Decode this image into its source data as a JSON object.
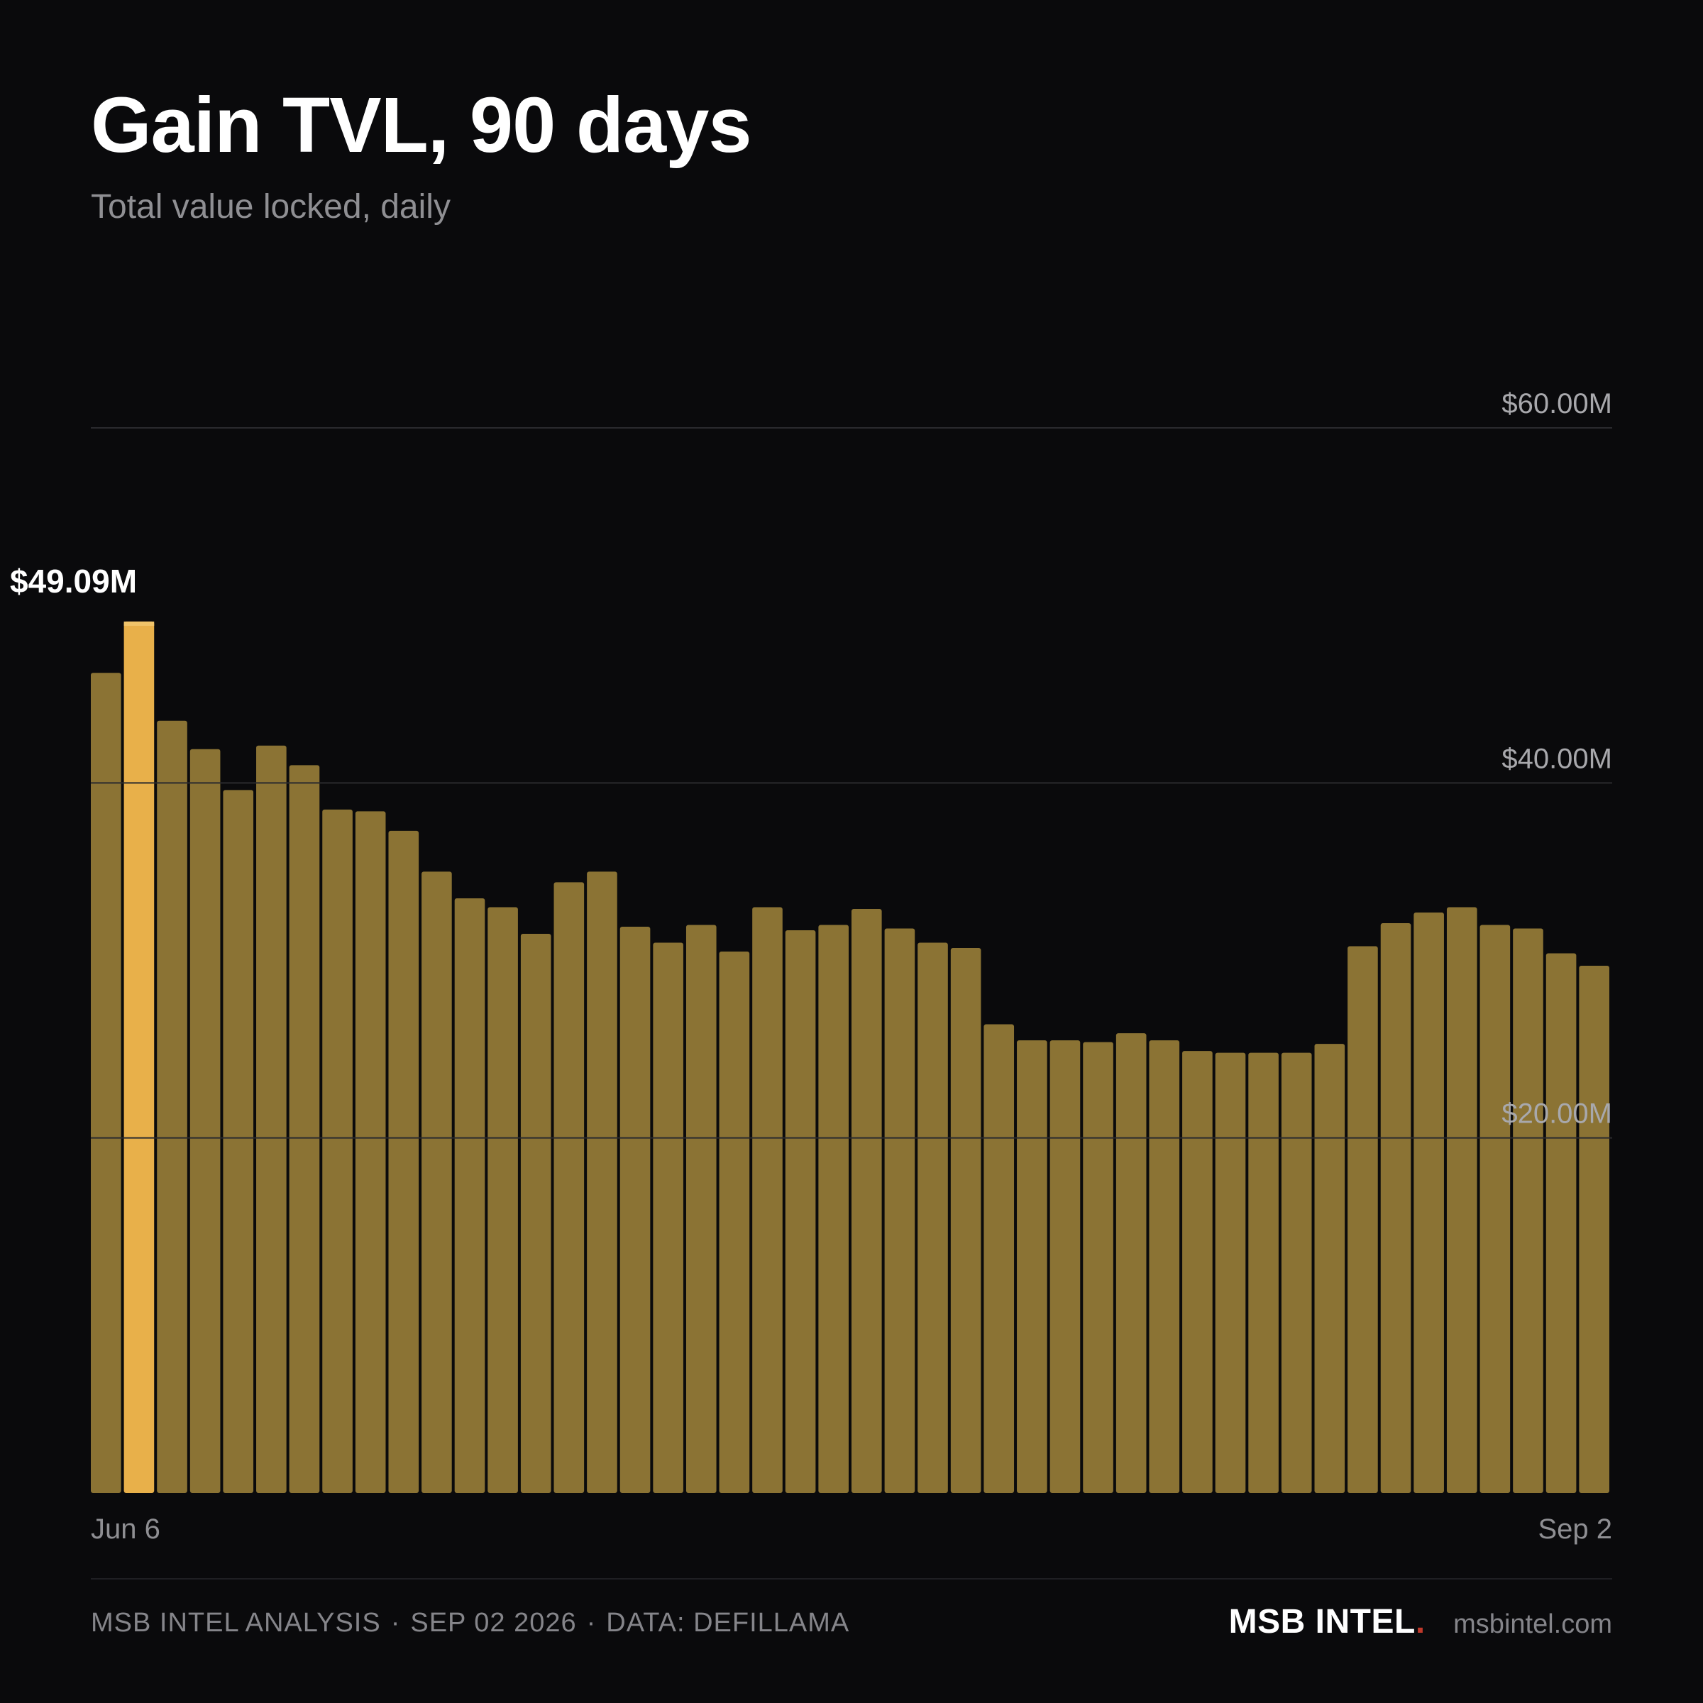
{
  "header": {
    "title": "Gain TVL, 90 days",
    "subtitle": "Total value locked, daily"
  },
  "chart_data": {
    "type": "bar",
    "title": "Gain TVL, 90 days",
    "subtitle": "Total value locked, daily",
    "xlabel": "",
    "ylabel": "",
    "x_start_label": "Jun 6",
    "x_end_label": "Sep 2",
    "ylim": [
      0,
      60
    ],
    "yticks": [
      {
        "value": 20,
        "label": "$20.00M"
      },
      {
        "value": 40,
        "label": "$40.00M"
      },
      {
        "value": 60,
        "label": "$60.00M"
      }
    ],
    "grid": true,
    "highlight_index": 1,
    "highlight_label": "$49.09M",
    "bar_color": "#8b7334",
    "highlight_color": "#e8b04a",
    "values": [
      46.2,
      49.09,
      43.5,
      41.9,
      39.6,
      42.1,
      41.0,
      38.5,
      38.4,
      37.3,
      35.0,
      33.5,
      33.0,
      31.5,
      34.4,
      35.0,
      31.9,
      31.0,
      32.0,
      30.5,
      33.0,
      31.7,
      32.0,
      32.9,
      31.8,
      31.0,
      30.7,
      26.4,
      25.5,
      25.5,
      25.4,
      25.9,
      25.5,
      24.9,
      24.8,
      24.8,
      24.8,
      25.3,
      30.8,
      32.1,
      32.7,
      33.0,
      32.0,
      31.8,
      30.4,
      29.7
    ]
  },
  "footer": {
    "analysis": "MSB INTEL ANALYSIS",
    "date": "SEP 02 2026",
    "source": "DATA: DEFILLAMA",
    "separator": "·",
    "brand": "MSB INTEL",
    "brand_dot": ".",
    "site": "msbintel.com"
  }
}
